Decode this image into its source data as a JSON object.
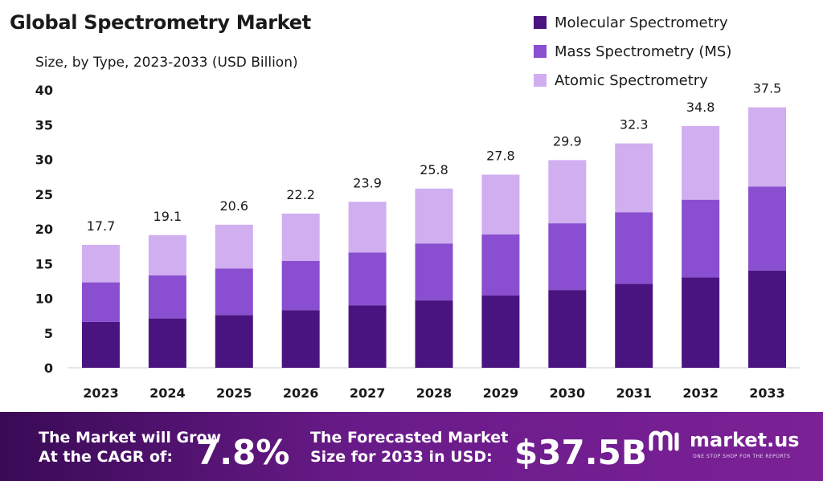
{
  "title": "Global Spectrometry Market",
  "subtitle": "Size, by Type, 2023-2033 (USD Billion)",
  "colors": {
    "molecular": "#4a1480",
    "mass": "#8a4fd0",
    "atomic": "#d0aef0",
    "band_start": "#3a0a56",
    "band_end": "#7b2196"
  },
  "legend": [
    {
      "label": "Molecular Spectrometry",
      "color": "#4a1480"
    },
    {
      "label": "Mass Spectrometry (MS)",
      "color": "#8a4fd0"
    },
    {
      "label": "Atomic Spectrometry",
      "color": "#d0aef0"
    }
  ],
  "chart_data": {
    "type": "bar",
    "stacked": true,
    "categories": [
      "2023",
      "2024",
      "2025",
      "2026",
      "2027",
      "2028",
      "2029",
      "2030",
      "2031",
      "2032",
      "2033"
    ],
    "series": [
      {
        "name": "Molecular Spectrometry",
        "values": [
          6.6,
          7.1,
          7.6,
          8.3,
          9.0,
          9.7,
          10.4,
          11.2,
          12.1,
          13.0,
          14.0
        ]
      },
      {
        "name": "Mass Spectrometry (MS)",
        "values": [
          5.7,
          6.2,
          6.7,
          7.1,
          7.6,
          8.2,
          8.8,
          9.6,
          10.3,
          11.2,
          12.1
        ]
      },
      {
        "name": "Atomic Spectrometry",
        "values": [
          5.4,
          5.8,
          6.3,
          6.8,
          7.3,
          7.9,
          8.6,
          9.1,
          9.9,
          10.6,
          11.4
        ]
      }
    ],
    "totals": [
      "17.7",
      "19.1",
      "20.6",
      "22.2",
      "23.9",
      "25.8",
      "27.8",
      "29.9",
      "32.3",
      "34.8",
      "37.5"
    ],
    "yticks": [
      "0",
      "5",
      "10",
      "15",
      "20",
      "25",
      "30",
      "35",
      "40"
    ],
    "ylim": [
      0,
      40
    ],
    "grid": false,
    "legend_position": "top-right"
  },
  "footer": {
    "cagr_label_line1": "The Market will Grow",
    "cagr_label_line2": "At the CAGR of:",
    "cagr_value": "7.8%",
    "forecast_label_line1": "The Forecasted Market",
    "forecast_label_line2": "Size for 2033 in USD:",
    "forecast_value": "$37.5B",
    "brand_name": "market.us",
    "brand_tagline": "ONE STOP SHOP FOR THE REPORTS"
  }
}
